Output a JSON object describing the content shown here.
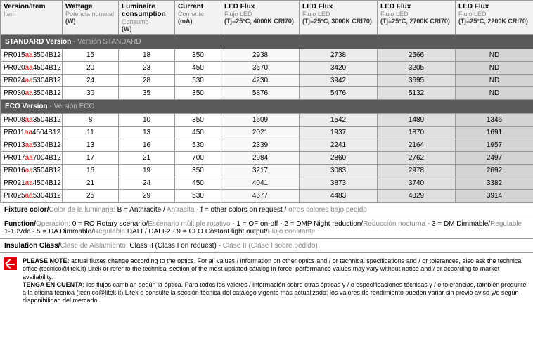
{
  "headers": [
    {
      "t": "Version/Item",
      "s": "Item",
      "sb": ""
    },
    {
      "t": "Wattage",
      "s": "Potencia nominal",
      "sb": "(W)"
    },
    {
      "t": "Luminaire consumption",
      "s": "Consumo",
      "sb": "(W)"
    },
    {
      "t": "Current",
      "s": "Corriente",
      "sb": "(mA)"
    },
    {
      "t": "LED Flux",
      "s": "Flujo LED",
      "sb": "(Tj=25°C, 4000K CRI70)"
    },
    {
      "t": "LED Flux",
      "s": "Flujo LED",
      "sb": "(Tj=25°C, 3000K CRI70)"
    },
    {
      "t": "LED Flux",
      "s": "Flujo LED",
      "sb": "(Tj=25°C, 2700K CRI70)"
    },
    {
      "t": "LED Flux",
      "s": "Flujo LED",
      "sb": "(Tj=25°C, 2200K CRI70)"
    }
  ],
  "sections": [
    {
      "title": "STANDARD Version",
      "sub": " - Versión STANDARD",
      "rows": [
        {
          "pn": [
            "PR015",
            "aa",
            "3504B12"
          ],
          "w": "15",
          "lc": "18",
          "c": "350",
          "f": [
            "2938",
            "2738",
            "2566",
            "ND"
          ]
        },
        {
          "pn": [
            "PR020",
            "aa",
            "4504B12"
          ],
          "w": "20",
          "lc": "23",
          "c": "450",
          "f": [
            "3670",
            "3420",
            "3205",
            "ND"
          ]
        },
        {
          "pn": [
            "PR024",
            "aa",
            "5304B12"
          ],
          "w": "24",
          "lc": "28",
          "c": "530",
          "f": [
            "4230",
            "3942",
            "3695",
            "ND"
          ]
        },
        {
          "pn": [
            "PR030",
            "aa",
            "3504B12"
          ],
          "w": "30",
          "lc": "35",
          "c": "350",
          "f": [
            "5876",
            "5476",
            "5132",
            "ND"
          ]
        }
      ]
    },
    {
      "title": "ECO Version",
      "sub": " - Versión ECO",
      "rows": [
        {
          "pn": [
            "PR008",
            "aa",
            "3504B12"
          ],
          "w": "8",
          "lc": "10",
          "c": "350",
          "f": [
            "1609",
            "1542",
            "1489",
            "1346"
          ]
        },
        {
          "pn": [
            "PR011",
            "aa",
            "4504B12"
          ],
          "w": "11",
          "lc": "13",
          "c": "450",
          "f": [
            "2021",
            "1937",
            "1870",
            "1691"
          ]
        },
        {
          "pn": [
            "PR013",
            "aa",
            "5304B12"
          ],
          "w": "13",
          "lc": "16",
          "c": "530",
          "f": [
            "2339",
            "2241",
            "2164",
            "1957"
          ]
        },
        {
          "pn": [
            "PR017",
            "aa",
            "7004B12"
          ],
          "w": "17",
          "lc": "21",
          "c": "700",
          "f": [
            "2984",
            "2860",
            "2762",
            "2497"
          ]
        },
        {
          "pn": [
            "PR016",
            "aa",
            "3504B12"
          ],
          "w": "16",
          "lc": "19",
          "c": "350",
          "f": [
            "3217",
            "3083",
            "2978",
            "2692"
          ]
        },
        {
          "pn": [
            "PR021",
            "aa",
            "4504B12"
          ],
          "w": "21",
          "lc": "24",
          "c": "450",
          "f": [
            "4041",
            "3873",
            "3740",
            "3382"
          ]
        },
        {
          "pn": [
            "PR025",
            "aa",
            "5304B12"
          ],
          "w": "25",
          "lc": "29",
          "c": "530",
          "f": [
            "4677",
            "4483",
            "4329",
            "3914"
          ]
        }
      ]
    }
  ],
  "footnotes": [
    {
      "lbl": "Fixture color/",
      "tlbl": "Color de la luminaria:",
      "txt": " B = Anthracite / ",
      "ttxt": "Antracita",
      " tail": " - f = other colors on request / ",
      "ttail": "otros colores bajo pedido"
    },
    {
      "lbl": "Function/",
      "tlbl": "Operación:",
      "txt": " 0 = RO Rotary scenario/",
      "ttxt": "Escenario múltiple rotativo",
      "tail": " - 1 = OF on-off - 2 = DMP Night reduction/",
      "ttail": "Reducción nocturna",
      "tail2": " - 3 = DM Dimmable/",
      "ttail2": "Regulable",
      "tail3": " 1-10Vdc - 5 = DA Dimmable/",
      "ttail3": "Regulable",
      "tail4": " DALI / DALI-2 - 9 = CLO Costant light output/",
      "ttail4": "Flujo constante"
    },
    {
      "lbl": "Insulation Class/",
      "tlbl": "Clase de Aislamiento:",
      "txt": " Class II (Class I on request) - ",
      "ttxt": "Clase II (Clase I sobre pedido)"
    }
  ],
  "pnote": {
    "b1": "PLEASE NOTE:",
    "t1": " actual fluxes change according to the optics. For all values / information on other optics and / or technical specifications and / or tolerances, also ask the technical office (tecnico@litek.it) Litek or refer to the technical section of the most updated catalog in force; performance values may vary without notice and / or according to market availability.",
    "b2": "TENGA EN CUENTA:",
    "t2": " los flujos cambian según la óptica. Para todos los valores / información sobre otras ópticas y / o especificaciones técnicas y / o tolerancias, también pregunte a la oficina técnica (tecnico@litek.it) Litek o consulte la sección técnica del catálogo vigente más actualizado; los valores de rendimiento pueden variar sin previo aviso y/o según disponibilidad del mercado."
  }
}
